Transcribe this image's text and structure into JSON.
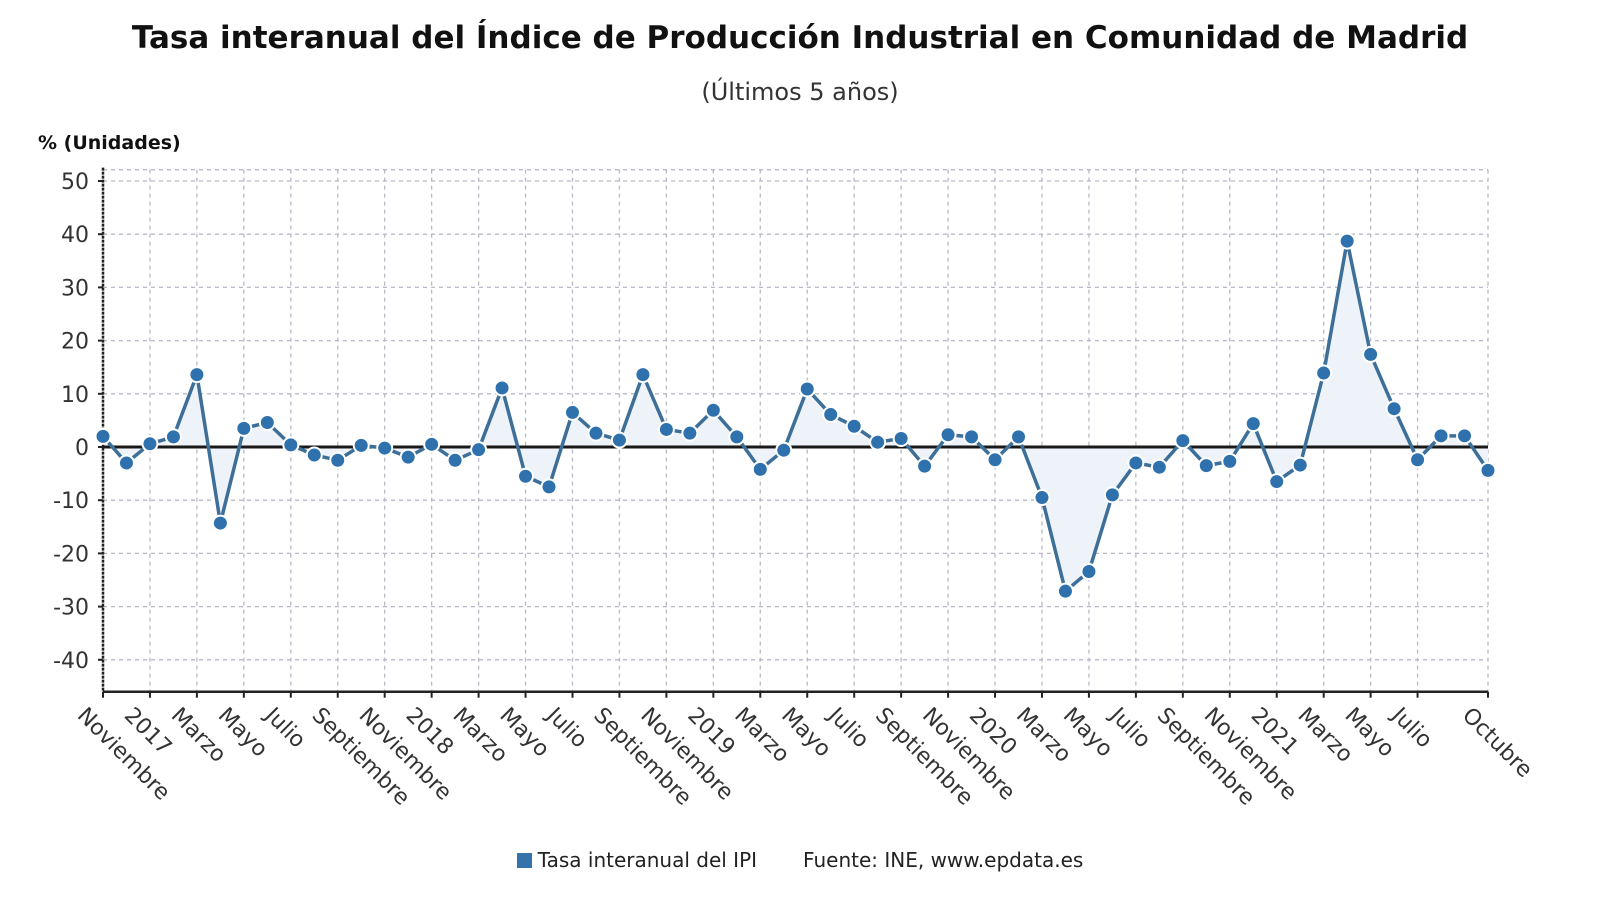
{
  "chart_data": {
    "type": "area",
    "title": "Tasa interanual del Índice de Producción Industrial en Comunidad de Madrid",
    "subtitle": "(Últimos 5 años)",
    "ylabel": "% (Unidades)",
    "xlabel": "",
    "ylim": [
      -46,
      51
    ],
    "yticks": [
      50,
      40,
      30,
      20,
      10,
      0,
      -10,
      -20,
      -30,
      -40
    ],
    "grid": true,
    "legend_placement": "bottom",
    "colors": {
      "line": "#3d6f98",
      "marker": "#2e71ad",
      "fill": "#eef3f9",
      "zero_line": "#1a1a1a",
      "grid": "#b8b8c8"
    },
    "xtick_labels": [
      {
        "index": 0,
        "label": "Noviembre"
      },
      {
        "index": 2,
        "label": "2017"
      },
      {
        "index": 4,
        "label": "Marzo"
      },
      {
        "index": 6,
        "label": "Mayo"
      },
      {
        "index": 8,
        "label": "Julio"
      },
      {
        "index": 10,
        "label": "Septiembre"
      },
      {
        "index": 12,
        "label": "Noviembre"
      },
      {
        "index": 14,
        "label": "2018"
      },
      {
        "index": 16,
        "label": "Marzo"
      },
      {
        "index": 18,
        "label": "Mayo"
      },
      {
        "index": 20,
        "label": "Julio"
      },
      {
        "index": 22,
        "label": "Septiembre"
      },
      {
        "index": 24,
        "label": "Noviembre"
      },
      {
        "index": 26,
        "label": "2019"
      },
      {
        "index": 28,
        "label": "Marzo"
      },
      {
        "index": 30,
        "label": "Mayo"
      },
      {
        "index": 32,
        "label": "Julio"
      },
      {
        "index": 34,
        "label": "Septiembre"
      },
      {
        "index": 36,
        "label": "Noviembre"
      },
      {
        "index": 38,
        "label": "2020"
      },
      {
        "index": 40,
        "label": "Marzo"
      },
      {
        "index": 42,
        "label": "Mayo"
      },
      {
        "index": 44,
        "label": "Julio"
      },
      {
        "index": 46,
        "label": "Septiembre"
      },
      {
        "index": 48,
        "label": "Noviembre"
      },
      {
        "index": 50,
        "label": "2021"
      },
      {
        "index": 52,
        "label": "Marzo"
      },
      {
        "index": 54,
        "label": "Mayo"
      },
      {
        "index": 56,
        "label": "Julio"
      },
      {
        "index": 59,
        "label": "Octubre"
      }
    ],
    "x": [
      "2016-11",
      "2016-12",
      "2017-01",
      "2017-02",
      "2017-03",
      "2017-04",
      "2017-05",
      "2017-06",
      "2017-07",
      "2017-08",
      "2017-09",
      "2017-10",
      "2017-11",
      "2017-12",
      "2018-01",
      "2018-02",
      "2018-03",
      "2018-04",
      "2018-05",
      "2018-06",
      "2018-07",
      "2018-08",
      "2018-09",
      "2018-10",
      "2018-11",
      "2018-12",
      "2019-01",
      "2019-02",
      "2019-03",
      "2019-04",
      "2019-05",
      "2019-06",
      "2019-07",
      "2019-08",
      "2019-09",
      "2019-10",
      "2019-11",
      "2019-12",
      "2020-01",
      "2020-02",
      "2020-03",
      "2020-04",
      "2020-05",
      "2020-06",
      "2020-07",
      "2020-08",
      "2020-09",
      "2020-10",
      "2020-11",
      "2020-12",
      "2021-01",
      "2021-02",
      "2021-03",
      "2021-04",
      "2021-05",
      "2021-06",
      "2021-07",
      "2021-08",
      "2021-09",
      "2021-10"
    ],
    "series": [
      {
        "name": "Tasa interanual del IPI",
        "values": [
          2.0,
          -3.0,
          0.6,
          1.9,
          13.6,
          -14.3,
          3.5,
          4.6,
          0.4,
          -1.5,
          -2.5,
          0.3,
          -0.2,
          -1.9,
          0.5,
          -2.5,
          -0.5,
          11.1,
          -5.5,
          -7.5,
          6.5,
          2.6,
          1.3,
          13.6,
          3.3,
          2.6,
          6.9,
          1.9,
          -4.2,
          -0.6,
          10.9,
          6.1,
          3.9,
          0.9,
          1.6,
          -3.6,
          2.3,
          1.9,
          -2.4,
          1.9,
          -9.5,
          -27.1,
          -23.4,
          -9.0,
          -3.0,
          -3.8,
          1.2,
          -3.5,
          -2.7,
          4.4,
          -6.5,
          -3.4,
          13.9,
          38.7,
          17.4,
          7.2,
          -2.4,
          2.1,
          2.1,
          -4.4
        ]
      }
    ]
  },
  "legend": {
    "series_label": "Tasa interanual del IPI",
    "source": "Fuente: INE, www.epdata.es"
  }
}
